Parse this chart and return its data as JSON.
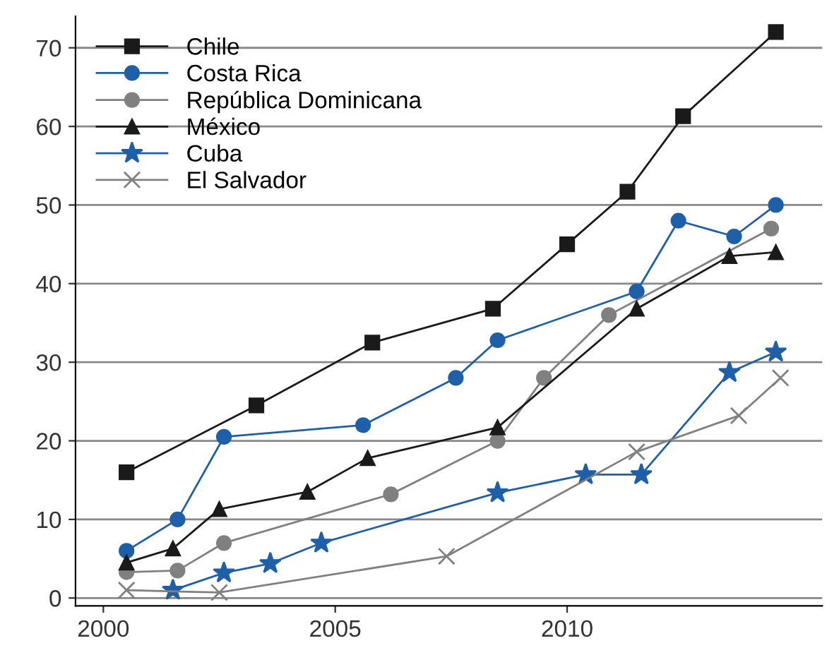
{
  "chart_data": {
    "type": "line",
    "xlim": [
      1999.4,
      2015.5
    ],
    "xticks": [
      2000,
      2005,
      2010
    ],
    "ylim": [
      -1,
      74
    ],
    "yticks": [
      0,
      10,
      20,
      30,
      40,
      50,
      60,
      70
    ],
    "grid": "y",
    "legend": "top left",
    "series": [
      {
        "name": "Chile",
        "color": "#1a1a1a",
        "marker": "square",
        "x": [
          2000.5,
          2003.3,
          2005.8,
          2008.4,
          2010,
          2011.3,
          2012.5,
          2014.5
        ],
        "values": [
          16,
          24.5,
          32.5,
          36.8,
          45,
          51.7,
          61.3,
          72
        ]
      },
      {
        "name": "Costa Rica",
        "color": "#1f5fa8",
        "marker": "circle",
        "x": [
          2000.5,
          2001.6,
          2002.6,
          2005.6,
          2007.6,
          2008.5,
          2011.5,
          2012.4,
          2013.6,
          2014.5
        ],
        "values": [
          6,
          10,
          20.5,
          22,
          28,
          32.8,
          39,
          48,
          46,
          50
        ]
      },
      {
        "name": "República Dominicana",
        "color": "#808080",
        "marker": "circle",
        "x": [
          2000.5,
          2001.6,
          2002.6,
          2006.2,
          2008.5,
          2009.5,
          2010.9,
          2014.4
        ],
        "values": [
          3.3,
          3.5,
          7,
          13.2,
          20,
          28,
          36,
          47
        ]
      },
      {
        "name": "México",
        "color": "#1a1a1a",
        "marker": "triangle",
        "x": [
          2000.5,
          2001.5,
          2002.5,
          2004.4,
          2005.7,
          2008.5,
          2011.5,
          2013.5,
          2014.5
        ],
        "values": [
          4.5,
          6.3,
          11.3,
          13.5,
          17.8,
          21.7,
          36.8,
          43.5,
          44
        ]
      },
      {
        "name": "Cuba",
        "color": "#1f5fa8",
        "marker": "star",
        "x": [
          2001.5,
          2002.6,
          2003.6,
          2004.7,
          2008.5,
          2010.4,
          2011.6,
          2013.5,
          2014.5
        ],
        "values": [
          1,
          3.2,
          4.4,
          7,
          13.4,
          15.7,
          15.7,
          28.7,
          31.3
        ]
      },
      {
        "name": "El Salvador",
        "color": "#808080",
        "marker": "cross",
        "x": [
          2000.5,
          2002.5,
          2007.4,
          2011.5,
          2013.7,
          2014.6
        ],
        "values": [
          1,
          0.7,
          5.3,
          18.6,
          23.2,
          28
        ]
      }
    ]
  }
}
